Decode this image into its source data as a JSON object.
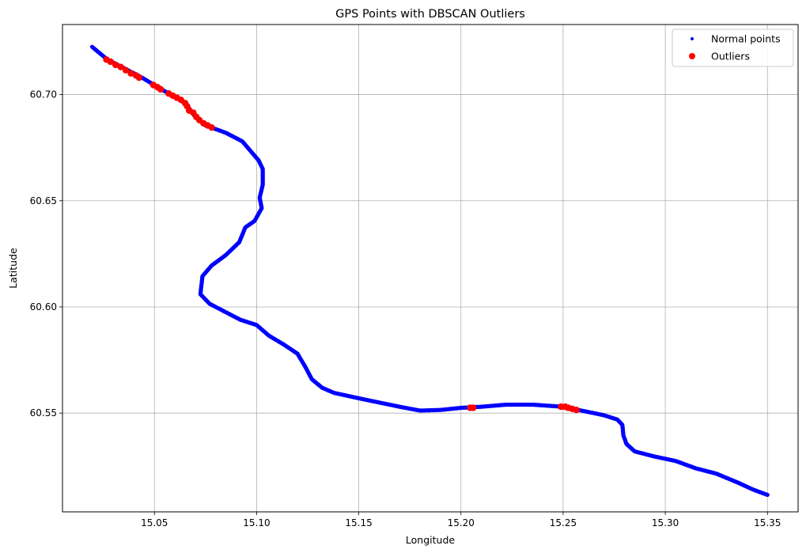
{
  "chart_data": {
    "type": "scatter",
    "title": "GPS Points with DBSCAN Outliers",
    "xlabel": "Longitude",
    "ylabel": "Latitude",
    "xlim": [
      15.005,
      15.365
    ],
    "ylim": [
      60.5035,
      60.733
    ],
    "x_ticks": [
      15.05,
      15.1,
      15.15,
      15.2,
      15.25,
      15.3,
      15.35
    ],
    "x_tick_labels": [
      "15.05",
      "15.10",
      "15.15",
      "15.20",
      "15.25",
      "15.30",
      "15.35"
    ],
    "y_ticks": [
      60.55,
      60.6,
      60.65,
      60.7
    ],
    "y_tick_labels": [
      "60.55",
      "60.60",
      "60.65",
      "60.70"
    ],
    "grid": true,
    "legend_position": "top-right",
    "series": [
      {
        "name": "Normal points",
        "color": "#0000ff",
        "marker": "small-circle",
        "track": [
          [
            15.0195,
            60.7225
          ],
          [
            15.027,
            60.7165
          ],
          [
            15.035,
            60.7125
          ],
          [
            15.043,
            60.7085
          ],
          [
            15.05,
            60.7045
          ],
          [
            15.057,
            60.7005
          ],
          [
            15.063,
            60.6975
          ],
          [
            15.067,
            60.6935
          ],
          [
            15.07,
            60.6895
          ],
          [
            15.075,
            60.6855
          ],
          [
            15.085,
            60.682
          ],
          [
            15.093,
            60.678
          ],
          [
            15.097,
            60.6735
          ],
          [
            15.101,
            60.669
          ],
          [
            15.103,
            60.665
          ],
          [
            15.103,
            60.6575
          ],
          [
            15.1015,
            60.6515
          ],
          [
            15.1025,
            60.6465
          ],
          [
            15.099,
            60.6405
          ],
          [
            15.0945,
            60.6375
          ],
          [
            15.0915,
            60.6305
          ],
          [
            15.085,
            60.6245
          ],
          [
            15.078,
            60.6195
          ],
          [
            15.0735,
            60.6145
          ],
          [
            15.0725,
            60.606
          ],
          [
            15.077,
            60.6015
          ],
          [
            15.085,
            60.5975
          ],
          [
            15.092,
            60.594
          ],
          [
            15.1,
            60.5915
          ],
          [
            15.106,
            60.5865
          ],
          [
            15.113,
            60.5825
          ],
          [
            15.12,
            60.578
          ],
          [
            15.124,
            60.5715
          ],
          [
            15.127,
            60.566
          ],
          [
            15.132,
            60.562
          ],
          [
            15.138,
            60.5595
          ],
          [
            15.15,
            60.557
          ],
          [
            15.16,
            60.555
          ],
          [
            15.17,
            60.553
          ],
          [
            15.18,
            60.5512
          ],
          [
            15.19,
            60.5515
          ],
          [
            15.2,
            60.5525
          ],
          [
            15.21,
            60.553
          ],
          [
            15.222,
            60.554
          ],
          [
            15.235,
            60.554
          ],
          [
            15.25,
            60.553
          ],
          [
            15.26,
            60.551
          ],
          [
            15.27,
            60.549
          ],
          [
            15.2765,
            60.547
          ],
          [
            15.279,
            60.5445
          ],
          [
            15.2795,
            60.5395
          ],
          [
            15.281,
            60.5355
          ],
          [
            15.285,
            60.532
          ],
          [
            15.295,
            60.5295
          ],
          [
            15.305,
            60.5275
          ],
          [
            15.315,
            60.524
          ],
          [
            15.325,
            60.5215
          ],
          [
            15.335,
            60.5175
          ],
          [
            15.343,
            60.514
          ],
          [
            15.35,
            60.5115
          ]
        ]
      },
      {
        "name": "Outliers",
        "color": "#ff0000",
        "marker": "circle",
        "points": [
          [
            15.0265,
            60.7165
          ],
          [
            15.0285,
            60.7155
          ],
          [
            15.031,
            60.714
          ],
          [
            15.0335,
            60.713
          ],
          [
            15.036,
            60.7115
          ],
          [
            15.0385,
            60.71
          ],
          [
            15.041,
            60.709
          ],
          [
            15.0425,
            60.708
          ],
          [
            15.0495,
            60.7045
          ],
          [
            15.0515,
            60.7035
          ],
          [
            15.053,
            60.7025
          ],
          [
            15.057,
            60.7005
          ],
          [
            15.059,
            60.6995
          ],
          [
            15.061,
            60.6985
          ],
          [
            15.063,
            60.6975
          ],
          [
            15.065,
            60.696
          ],
          [
            15.066,
            60.6945
          ],
          [
            15.067,
            60.6925
          ],
          [
            15.069,
            60.6915
          ],
          [
            15.0705,
            60.6895
          ],
          [
            15.072,
            60.688
          ],
          [
            15.074,
            60.6865
          ],
          [
            15.076,
            60.6855
          ],
          [
            15.078,
            60.6845
          ],
          [
            15.2045,
            60.5525
          ],
          [
            15.206,
            60.5525
          ],
          [
            15.249,
            60.553
          ],
          [
            15.251,
            60.553
          ],
          [
            15.2525,
            60.5525
          ],
          [
            15.2545,
            60.552
          ],
          [
            15.2565,
            60.5515
          ]
        ]
      }
    ]
  }
}
